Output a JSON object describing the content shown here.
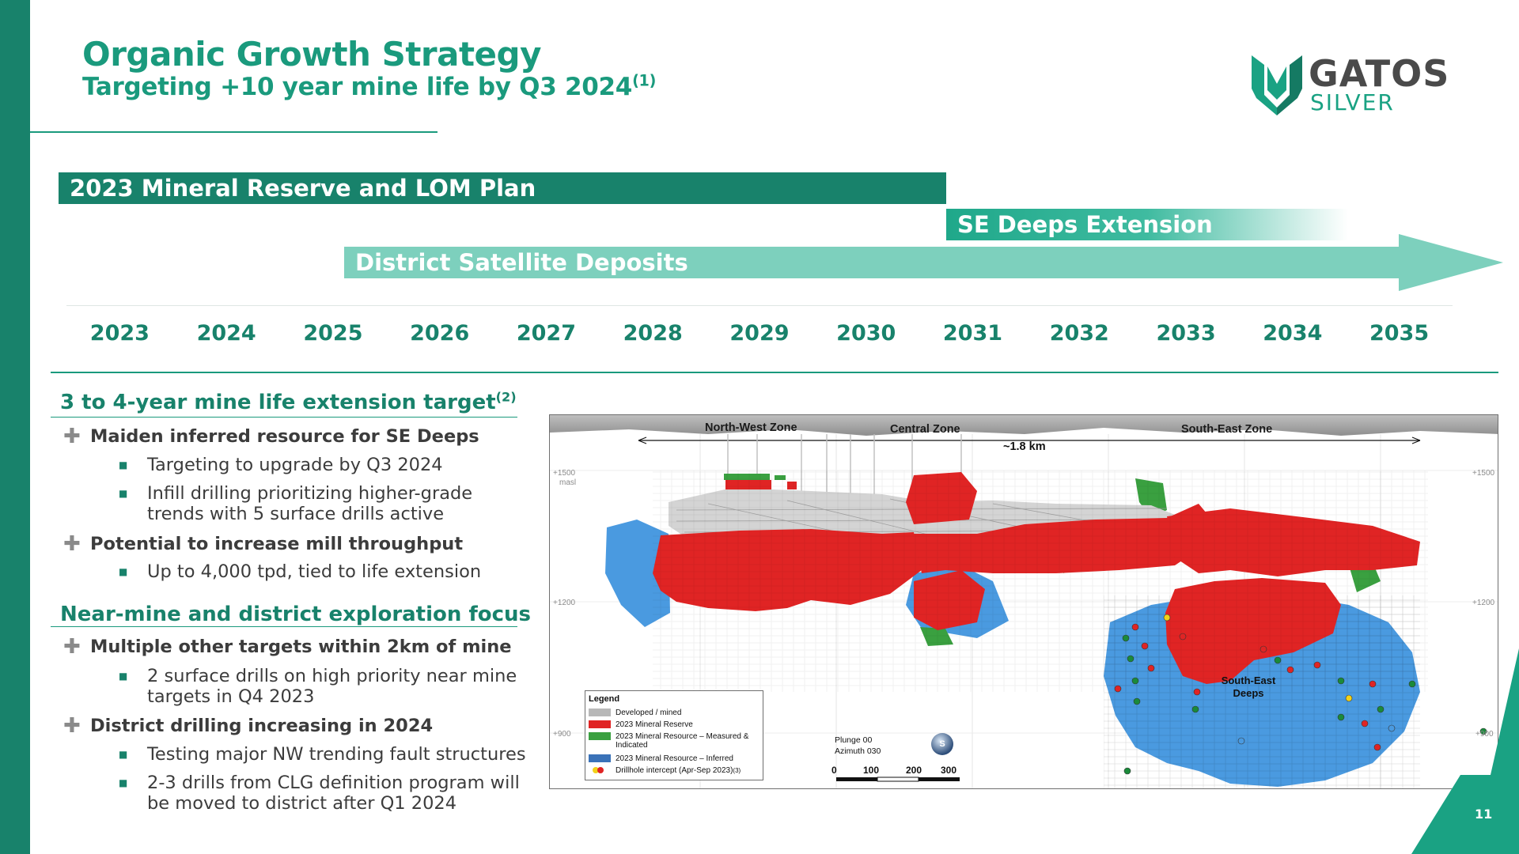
{
  "header": {
    "title": "Organic Growth Strategy",
    "subtitle": "Targeting +10 year mine life by Q3 2024",
    "subtitle_note": "(1)"
  },
  "logo": {
    "line1": "GATOS",
    "line2": "SILVER"
  },
  "colors": {
    "primary": "#18826b",
    "accent": "#1a9a7d",
    "light": "#7dd0bd",
    "reserve": "#e02424",
    "inferred": "#4a9ae0",
    "measured": "#3aa040"
  },
  "timeline": {
    "bars": [
      {
        "label": "2023 Mineral Reserve and LOM Plan"
      },
      {
        "label": "SE Deeps Extension"
      },
      {
        "label": "District Satellite Deposits"
      }
    ],
    "years": [
      "2023",
      "2024",
      "2025",
      "2026",
      "2027",
      "2028",
      "2029",
      "2030",
      "2031",
      "2032",
      "2033",
      "2034",
      "2035"
    ]
  },
  "section1": {
    "heading": "3 to 4-year mine life extension target",
    "note": "(2)",
    "bullets": [
      {
        "text": "Maiden inferred resource for SE Deeps",
        "subs": [
          "Targeting to upgrade by Q3 2024",
          "Infill drilling prioritizing higher-grade trends with 5 surface drills active"
        ]
      },
      {
        "text": "Potential to increase mill throughput",
        "subs": [
          "Up to 4,000 tpd, tied to life extension"
        ]
      }
    ]
  },
  "section2": {
    "heading": "Near-mine and district exploration focus",
    "bullets": [
      {
        "text": "Multiple other targets within 2km of mine",
        "subs": [
          "2 surface drills on high priority near mine targets in Q4 2023"
        ]
      },
      {
        "text": "District drilling increasing in 2024",
        "subs": [
          "Testing major NW trending fault structures",
          "2-3 drills from CLG definition program will be moved to district after Q1 2024"
        ]
      }
    ]
  },
  "map": {
    "zones": [
      "North-West Zone",
      "Central Zone",
      "South-East Zone"
    ],
    "distance": "~1.8 km",
    "elevations": {
      "e1500": "+1500",
      "masl": "masl",
      "e1200": "+1200",
      "e900": "+900"
    },
    "se_deeps": "South-East Deeps",
    "legend": {
      "title": "Legend",
      "items": [
        "Developed / mined",
        "2023 Mineral Reserve",
        "2023 Mineral Resource – Measured & Indicated",
        "2023 Mineral Resource – Inferred",
        "Drillhole intercept (Apr-Sep 2023)"
      ],
      "note": "(3)"
    },
    "plunge": "Plunge 00",
    "azimuth": "Azimuth 030",
    "compass": "S",
    "scale": [
      "0",
      "100",
      "200",
      "300"
    ]
  },
  "page_number": "11"
}
